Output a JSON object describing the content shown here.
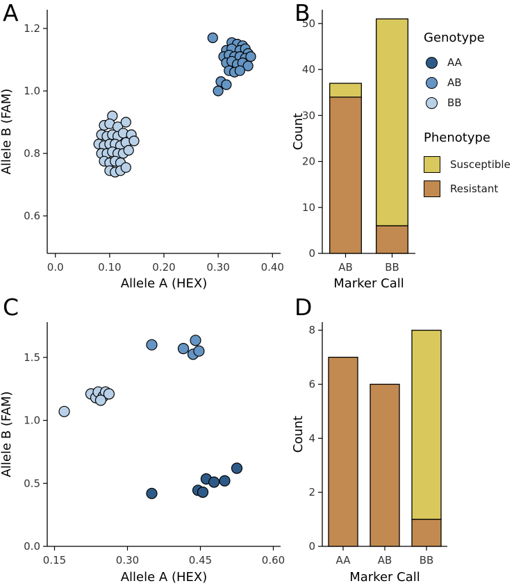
{
  "figure": {
    "panels": [
      {
        "label": "A"
      },
      {
        "label": "B"
      },
      {
        "label": "C"
      },
      {
        "label": "D"
      }
    ]
  },
  "colors": {
    "AA": "#2e5a87",
    "AB": "#6495c4",
    "BB": "#b8d1e8",
    "Susceptible": "#d9c95d",
    "Resistant": "#c28a50",
    "axis": "#000000",
    "tick_label": "#333333"
  },
  "legend": {
    "genotype_title": "Genotype",
    "genotype_items": [
      {
        "label": "AA",
        "key": "AA"
      },
      {
        "label": "AB",
        "key": "AB"
      },
      {
        "label": "BB",
        "key": "BB"
      }
    ],
    "phenotype_title": "Phenotype",
    "phenotype_items": [
      {
        "label": "Susceptible",
        "key": "Susceptible"
      },
      {
        "label": "Resistant",
        "key": "Resistant"
      }
    ]
  },
  "chart_data": [
    {
      "id": "panel-a",
      "panel": "A",
      "type": "scatter",
      "xlabel": "Allele A (HEX)",
      "ylabel": "Allele B (FAM)",
      "xlim": [
        -0.015,
        0.415
      ],
      "ylim": [
        0.48,
        1.26
      ],
      "xticks": [
        0,
        0.1,
        0.2,
        0.3,
        0.4
      ],
      "xtick_labels": [
        "0.0",
        "0.10",
        "0.20",
        "0.30",
        "0.40"
      ],
      "yticks": [
        0.6,
        0.8,
        1.0,
        1.2
      ],
      "ytick_labels": [
        "0.6",
        "0.8",
        "1.0",
        "1.2"
      ],
      "point_radius": 7,
      "grid": false,
      "series": [
        {
          "name": "BB",
          "points": [
            [
              0.105,
              0.92
            ],
            [
              0.09,
              0.89
            ],
            [
              0.1,
              0.895
            ],
            [
              0.115,
              0.885
            ],
            [
              0.13,
              0.9
            ],
            [
              0.085,
              0.86
            ],
            [
              0.095,
              0.855
            ],
            [
              0.105,
              0.86
            ],
            [
              0.115,
              0.855
            ],
            [
              0.125,
              0.865
            ],
            [
              0.14,
              0.86
            ],
            [
              0.08,
              0.83
            ],
            [
              0.09,
              0.825
            ],
            [
              0.1,
              0.83
            ],
            [
              0.11,
              0.83
            ],
            [
              0.12,
              0.825
            ],
            [
              0.13,
              0.835
            ],
            [
              0.145,
              0.84
            ],
            [
              0.085,
              0.8
            ],
            [
              0.095,
              0.8
            ],
            [
              0.105,
              0.805
            ],
            [
              0.115,
              0.8
            ],
            [
              0.125,
              0.8
            ],
            [
              0.135,
              0.81
            ],
            [
              0.09,
              0.775
            ],
            [
              0.1,
              0.77
            ],
            [
              0.11,
              0.775
            ],
            [
              0.12,
              0.77
            ],
            [
              0.1,
              0.745
            ],
            [
              0.11,
              0.74
            ],
            [
              0.12,
              0.745
            ],
            [
              0.13,
              0.755
            ]
          ]
        },
        {
          "name": "AB",
          "points": [
            [
              0.29,
              1.17
            ],
            [
              0.325,
              1.155
            ],
            [
              0.335,
              1.15
            ],
            [
              0.345,
              1.145
            ],
            [
              0.315,
              1.13
            ],
            [
              0.325,
              1.135
            ],
            [
              0.34,
              1.13
            ],
            [
              0.35,
              1.135
            ],
            [
              0.355,
              1.12
            ],
            [
              0.31,
              1.11
            ],
            [
              0.32,
              1.115
            ],
            [
              0.33,
              1.11
            ],
            [
              0.34,
              1.11
            ],
            [
              0.35,
              1.105
            ],
            [
              0.36,
              1.11
            ],
            [
              0.315,
              1.09
            ],
            [
              0.325,
              1.095
            ],
            [
              0.335,
              1.085
            ],
            [
              0.345,
              1.09
            ],
            [
              0.355,
              1.08
            ],
            [
              0.32,
              1.065
            ],
            [
              0.33,
              1.06
            ],
            [
              0.34,
              1.065
            ],
            [
              0.305,
              1.03
            ],
            [
              0.315,
              1.02
            ],
            [
              0.3,
              1.0
            ]
          ]
        }
      ]
    },
    {
      "id": "panel-b",
      "panel": "B",
      "type": "stacked_bar",
      "xlabel": "Marker Call",
      "ylabel": "Count",
      "categories": [
        "AB",
        "BB"
      ],
      "series": [
        {
          "name": "Resistant",
          "values": [
            34,
            6
          ]
        },
        {
          "name": "Susceptible",
          "values": [
            3,
            45
          ]
        }
      ],
      "ylim": [
        0,
        53
      ],
      "yticks": [
        0,
        10,
        20,
        30,
        40,
        50
      ],
      "ytick_labels": [
        "0",
        "10",
        "20",
        "30",
        "40",
        "50"
      ],
      "grid": false,
      "legend_position": "right"
    },
    {
      "id": "panel-c",
      "panel": "C",
      "type": "scatter",
      "xlabel": "Allele A (HEX)",
      "ylabel": "Allele B (FAM)",
      "xlim": [
        0.135,
        0.615
      ],
      "ylim": [
        0,
        1.78
      ],
      "xticks": [
        0.15,
        0.3,
        0.45,
        0.6
      ],
      "xtick_labels": [
        "0.15",
        "0.30",
        "0.45",
        "0.60"
      ],
      "yticks": [
        0,
        0.5,
        1.0,
        1.5
      ],
      "ytick_labels": [
        "0.0",
        "0.5",
        "1.0",
        "1.5"
      ],
      "point_radius": 7.5,
      "grid": false,
      "series": [
        {
          "name": "BB",
          "points": [
            [
              0.17,
              1.07
            ],
            [
              0.225,
              1.21
            ],
            [
              0.235,
              1.18
            ],
            [
              0.24,
              1.225
            ],
            [
              0.25,
              1.19
            ],
            [
              0.255,
              1.225
            ],
            [
              0.262,
              1.21
            ],
            [
              0.245,
              1.16
            ]
          ]
        },
        {
          "name": "AB",
          "points": [
            [
              0.35,
              1.6
            ],
            [
              0.415,
              1.57
            ],
            [
              0.435,
              1.525
            ],
            [
              0.44,
              1.635
            ],
            [
              0.447,
              1.55
            ]
          ]
        },
        {
          "name": "AA",
          "points": [
            [
              0.35,
              0.42
            ],
            [
              0.445,
              0.445
            ],
            [
              0.455,
              0.43
            ],
            [
              0.462,
              0.535
            ],
            [
              0.478,
              0.51
            ],
            [
              0.5,
              0.52
            ],
            [
              0.525,
              0.62
            ]
          ]
        }
      ]
    },
    {
      "id": "panel-d",
      "panel": "D",
      "type": "stacked_bar",
      "xlabel": "Marker Call",
      "ylabel": "Count",
      "categories": [
        "AA",
        "AB",
        "BB"
      ],
      "series": [
        {
          "name": "Resistant",
          "values": [
            7,
            6,
            1
          ]
        },
        {
          "name": "Susceptible",
          "values": [
            0,
            0,
            7
          ]
        }
      ],
      "ylim": [
        0,
        8.3
      ],
      "yticks": [
        0,
        2,
        4,
        6,
        8
      ],
      "ytick_labels": [
        "0",
        "2",
        "4",
        "6",
        "8"
      ],
      "grid": false
    }
  ]
}
